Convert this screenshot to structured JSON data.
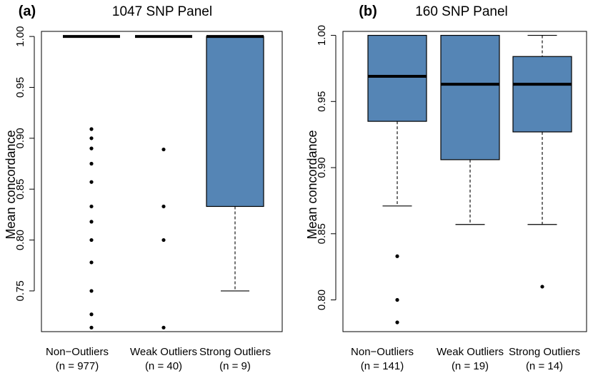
{
  "chart_data": [
    {
      "type": "box",
      "panel_label": "(a)",
      "title": "1047 SNP Panel",
      "ylabel": "Mean concordance",
      "ylim": [
        0.71,
        1.005
      ],
      "yticks": [
        0.75,
        0.8,
        0.85,
        0.9,
        0.95,
        1.0
      ],
      "ytick_labels": [
        "0.75",
        "0.80",
        "0.85",
        "0.90",
        "0.95",
        "1.00"
      ],
      "box_color": "#5585b5",
      "grid": false,
      "categories": [
        "Non−Outliers",
        "Weak Outliers",
        "Strong Outliers"
      ],
      "counts": [
        "(n = 977)",
        "(n = 40)",
        "(n = 9)"
      ],
      "boxes": [
        {
          "q1": 1.0,
          "median": 1.0,
          "q3": 1.0,
          "whisker_low": 1.0,
          "whisker_high": 1.0,
          "outliers": [
            0.909,
            0.9,
            0.89,
            0.875,
            0.857,
            0.833,
            0.818,
            0.8,
            0.778,
            0.75,
            0.727,
            0.714
          ]
        },
        {
          "q1": 1.0,
          "median": 1.0,
          "q3": 1.0,
          "whisker_low": 1.0,
          "whisker_high": 1.0,
          "outliers": [
            0.889,
            0.833,
            0.8,
            0.714
          ]
        },
        {
          "q1": 0.833,
          "median": 1.0,
          "q3": 1.0,
          "whisker_low": 0.75,
          "whisker_high": 1.0,
          "outliers": []
        }
      ]
    },
    {
      "type": "box",
      "panel_label": "(b)",
      "title": "160 SNP Panel",
      "ylabel": "Mean concordance",
      "ylim": [
        0.776,
        1.003
      ],
      "yticks": [
        0.8,
        0.85,
        0.9,
        0.95,
        1.0
      ],
      "ytick_labels": [
        "0.80",
        "0.85",
        "0.90",
        "0.95",
        "1.00"
      ],
      "box_color": "#5585b5",
      "grid": false,
      "categories": [
        "Non−Outliers",
        "Weak Outliers",
        "Strong Outliers"
      ],
      "counts": [
        "(n = 141)",
        "(n = 19)",
        "(n = 14)"
      ],
      "boxes": [
        {
          "q1": 0.935,
          "median": 0.969,
          "q3": 1.0,
          "whisker_low": 0.871,
          "whisker_high": 1.0,
          "outliers": [
            0.833,
            0.8,
            0.783
          ]
        },
        {
          "q1": 0.906,
          "median": 0.963,
          "q3": 1.0,
          "whisker_low": 0.857,
          "whisker_high": 1.0,
          "outliers": []
        },
        {
          "q1": 0.927,
          "median": 0.963,
          "q3": 0.984,
          "whisker_low": 0.857,
          "whisker_high": 1.0,
          "outliers": [
            0.81
          ]
        }
      ]
    }
  ]
}
